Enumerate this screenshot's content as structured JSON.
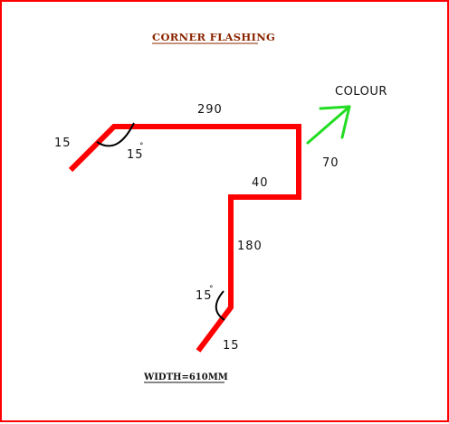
{
  "title": "CORNER FLASHING",
  "footer": "WIDTH=610MM",
  "colour_label": "COLOUR",
  "dimensions": {
    "top_lip": "15",
    "top_angle": "15",
    "top_width": "290",
    "right_drop": "70",
    "step": "40",
    "vertical": "180",
    "bottom_angle": "15",
    "bottom_lip": "15"
  },
  "degree_symbol": "°",
  "colors": {
    "flashing": "#ff0000",
    "arrow": "#22dd22",
    "border": "#ff0000",
    "title": "#8b2500"
  }
}
